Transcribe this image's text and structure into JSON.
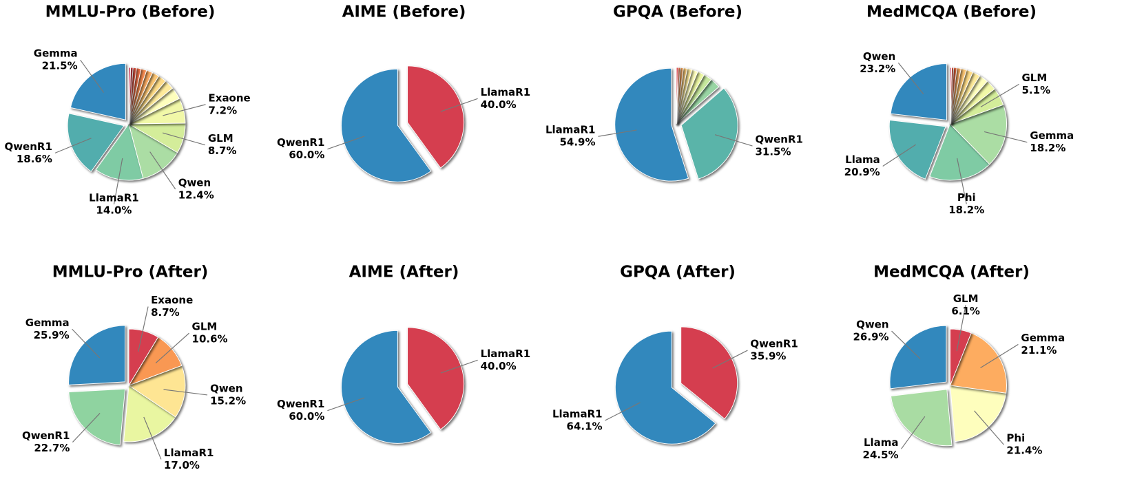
{
  "chart_data": [
    {
      "type": "pie",
      "title": "MMLU-Pro (Before)",
      "categories": [
        "Gemma",
        "QwenR1",
        "LlamaR1",
        "Qwen",
        "GLM",
        "Exaone",
        null,
        null,
        null,
        null,
        null,
        null,
        null,
        null,
        null,
        null
      ],
      "values": [
        21.5,
        18.6,
        14.0,
        12.4,
        8.7,
        7.2,
        3.5,
        2.8,
        2.4,
        2.0,
        1.8,
        1.6,
        1.3,
        1.0,
        0.7,
        0.5
      ],
      "value_labels": [
        "21.5%",
        "18.6%",
        "14.0%",
        "12.4%",
        "8.7%",
        "7.2%",
        null,
        null,
        null,
        null,
        null,
        null,
        null,
        null,
        null,
        null
      ],
      "colors": [
        "#3288bd",
        "#52adad",
        "#7fcba4",
        "#abdda4",
        "#d4ed9a",
        "#f1f8a8",
        "#fefebd",
        "#feeb9c",
        "#fedc88",
        "#fdc775",
        "#fcac63",
        "#f98e52",
        "#f4734a",
        "#e85b47",
        "#d9444d",
        "#c73354"
      ]
    },
    {
      "type": "pie",
      "title": "AIME (Before)",
      "categories": [
        "QwenR1",
        "LlamaR1"
      ],
      "values": [
        60.0,
        40.0
      ],
      "value_labels": [
        "60.0%",
        "40.0%"
      ],
      "colors": [
        "#3288bd",
        "#d53e4f"
      ]
    },
    {
      "type": "pie",
      "title": "GPQA (Before)",
      "categories": [
        "LlamaR1",
        "QwenR1",
        null,
        null,
        null,
        null,
        null,
        null,
        null,
        null,
        null
      ],
      "values": [
        54.9,
        31.5,
        3.0,
        2.4,
        2.0,
        1.7,
        1.4,
        1.1,
        0.9,
        0.6,
        0.5
      ],
      "value_labels": [
        "54.9%",
        "31.5%",
        null,
        null,
        null,
        null,
        null,
        null,
        null,
        null,
        null
      ],
      "colors": [
        "#3288bd",
        "#5ab4a9",
        "#99d5a4",
        "#c7e89e",
        "#ecf7a4",
        "#fefebd",
        "#feeb9c",
        "#fdd080",
        "#fcac63",
        "#f4734a",
        "#d9444d"
      ]
    },
    {
      "type": "pie",
      "title": "MedMCQA (Before)",
      "categories": [
        "Qwen",
        "Llama",
        "Phi",
        "Gemma",
        "GLM",
        null,
        null,
        null,
        null,
        null,
        null,
        null,
        null,
        null
      ],
      "values": [
        23.2,
        20.9,
        18.2,
        18.2,
        5.1,
        3.0,
        2.6,
        2.2,
        1.9,
        1.6,
        1.2,
        0.9,
        0.6,
        0.4
      ],
      "value_labels": [
        "23.2%",
        "20.9%",
        "18.2%",
        "18.2%",
        "5.1%",
        null,
        null,
        null,
        null,
        null,
        null,
        null,
        null,
        null
      ],
      "colors": [
        "#3288bd",
        "#52adad",
        "#7fcba4",
        "#abdda4",
        "#d4ed9a",
        "#f1f8a8",
        "#fefebd",
        "#feeb9c",
        "#fedc88",
        "#fdc775",
        "#fcac63",
        "#f4734a",
        "#e85b47",
        "#c73354"
      ]
    },
    {
      "type": "pie",
      "title": "MMLU-Pro (After)",
      "categories": [
        "Gemma",
        "QwenR1",
        "LlamaR1",
        "Qwen",
        "GLM",
        "Exaone"
      ],
      "values": [
        25.9,
        22.7,
        17.0,
        15.2,
        10.6,
        8.7
      ],
      "value_labels": [
        "25.9%",
        "22.7%",
        "17.0%",
        "15.2%",
        "10.6%",
        "8.7%"
      ],
      "colors": [
        "#3288bd",
        "#8fd3a0",
        "#e9f6a1",
        "#fee593",
        "#f99853",
        "#d53e4f"
      ]
    },
    {
      "type": "pie",
      "title": "AIME (After)",
      "categories": [
        "QwenR1",
        "LlamaR1"
      ],
      "values": [
        60.0,
        40.0
      ],
      "value_labels": [
        "60.0%",
        "40.0%"
      ],
      "colors": [
        "#3288bd",
        "#d53e4f"
      ]
    },
    {
      "type": "pie",
      "title": "GPQA (After)",
      "categories": [
        "LlamaR1",
        "QwenR1"
      ],
      "values": [
        64.1,
        35.9
      ],
      "value_labels": [
        "64.1%",
        "35.9%"
      ],
      "colors": [
        "#3288bd",
        "#d53e4f"
      ]
    },
    {
      "type": "pie",
      "title": "MedMCQA (After)",
      "categories": [
        "Qwen",
        "Llama",
        "Phi",
        "Gemma",
        "GLM"
      ],
      "values": [
        26.9,
        24.5,
        21.4,
        21.1,
        6.1
      ],
      "value_labels": [
        "26.9%",
        "24.5%",
        "21.4%",
        "21.1%",
        "6.1%"
      ],
      "colors": [
        "#3288bd",
        "#a9dca3",
        "#fefebd",
        "#fdac60",
        "#d53e4f"
      ]
    }
  ]
}
